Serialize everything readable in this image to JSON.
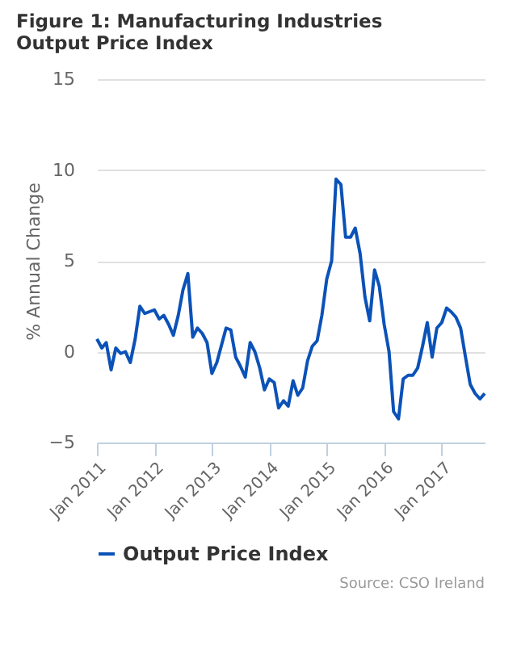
{
  "chart_data": {
    "type": "line",
    "title": "Figure 1: Manufacturing Industries Output Price Index",
    "ylabel": "% Annual Change",
    "x": [
      "2011-01",
      "2011-02",
      "2011-03",
      "2011-04",
      "2011-05",
      "2011-06",
      "2011-07",
      "2011-08",
      "2011-09",
      "2011-10",
      "2011-11",
      "2011-12",
      "2012-01",
      "2012-02",
      "2012-03",
      "2012-04",
      "2012-05",
      "2012-06",
      "2012-07",
      "2012-08",
      "2012-09",
      "2012-10",
      "2012-11",
      "2012-12",
      "2013-01",
      "2013-02",
      "2013-03",
      "2013-04",
      "2013-05",
      "2013-06",
      "2013-07",
      "2013-08",
      "2013-09",
      "2013-10",
      "2013-11",
      "2013-12",
      "2014-01",
      "2014-02",
      "2014-03",
      "2014-04",
      "2014-05",
      "2014-06",
      "2014-07",
      "2014-08",
      "2014-09",
      "2014-10",
      "2014-11",
      "2014-12",
      "2015-01",
      "2015-02",
      "2015-03",
      "2015-04",
      "2015-05",
      "2015-06",
      "2015-07",
      "2015-08",
      "2015-09",
      "2015-10",
      "2015-11",
      "2015-12",
      "2016-01",
      "2016-02",
      "2016-03",
      "2016-04",
      "2016-05",
      "2016-06",
      "2016-07",
      "2016-08",
      "2016-09",
      "2016-10",
      "2016-11",
      "2016-12",
      "2017-01",
      "2017-02",
      "2017-03",
      "2017-04",
      "2017-05",
      "2017-06",
      "2017-07",
      "2017-08",
      "2017-09",
      "2017-10"
    ],
    "series": [
      {
        "name": "Output Price Index",
        "color": "#0b52b8",
        "values": [
          0.7,
          0.2,
          0.5,
          -1.0,
          0.2,
          -0.1,
          0.0,
          -0.6,
          0.7,
          2.5,
          2.1,
          2.2,
          2.3,
          1.8,
          2.0,
          1.5,
          0.9,
          2.0,
          3.4,
          4.3,
          0.8,
          1.3,
          1.0,
          0.5,
          -1.2,
          -0.6,
          0.3,
          1.3,
          1.2,
          -0.3,
          -0.8,
          -1.4,
          0.5,
          0.0,
          -0.9,
          -2.1,
          -1.5,
          -1.7,
          -3.1,
          -2.7,
          -3.0,
          -1.6,
          -2.4,
          -2.0,
          -0.5,
          0.3,
          0.6,
          2.0,
          4.0,
          5.0,
          9.5,
          9.2,
          6.3,
          6.3,
          6.8,
          5.4,
          3.0,
          1.7,
          4.5,
          3.6,
          1.5,
          0.0,
          -3.3,
          -3.7,
          -1.5,
          -1.3,
          -1.3,
          -0.9,
          0.3,
          1.6,
          -0.3,
          1.3,
          1.6,
          2.4,
          2.2,
          1.9,
          1.3,
          -0.3,
          -1.8,
          -2.3,
          -2.6,
          -2.3
        ]
      }
    ],
    "xlim": [
      "2011-01",
      "2017-10"
    ],
    "xticks": [
      {
        "value": "2011-01",
        "label": "Jan 2011"
      },
      {
        "value": "2012-01",
        "label": "Jan 2012"
      },
      {
        "value": "2013-01",
        "label": "Jan 2013"
      },
      {
        "value": "2014-01",
        "label": "Jan 2014"
      },
      {
        "value": "2015-01",
        "label": "Jan 2015"
      },
      {
        "value": "2016-01",
        "label": "Jan 2016"
      },
      {
        "value": "2017-01",
        "label": "Jan 2017"
      }
    ],
    "ylim": [
      -5,
      15
    ],
    "yticks": [
      -5,
      0,
      5,
      10,
      15
    ],
    "grid": "y",
    "legend": "bottom",
    "annotations": [
      "Source: CSO Ireland"
    ]
  }
}
